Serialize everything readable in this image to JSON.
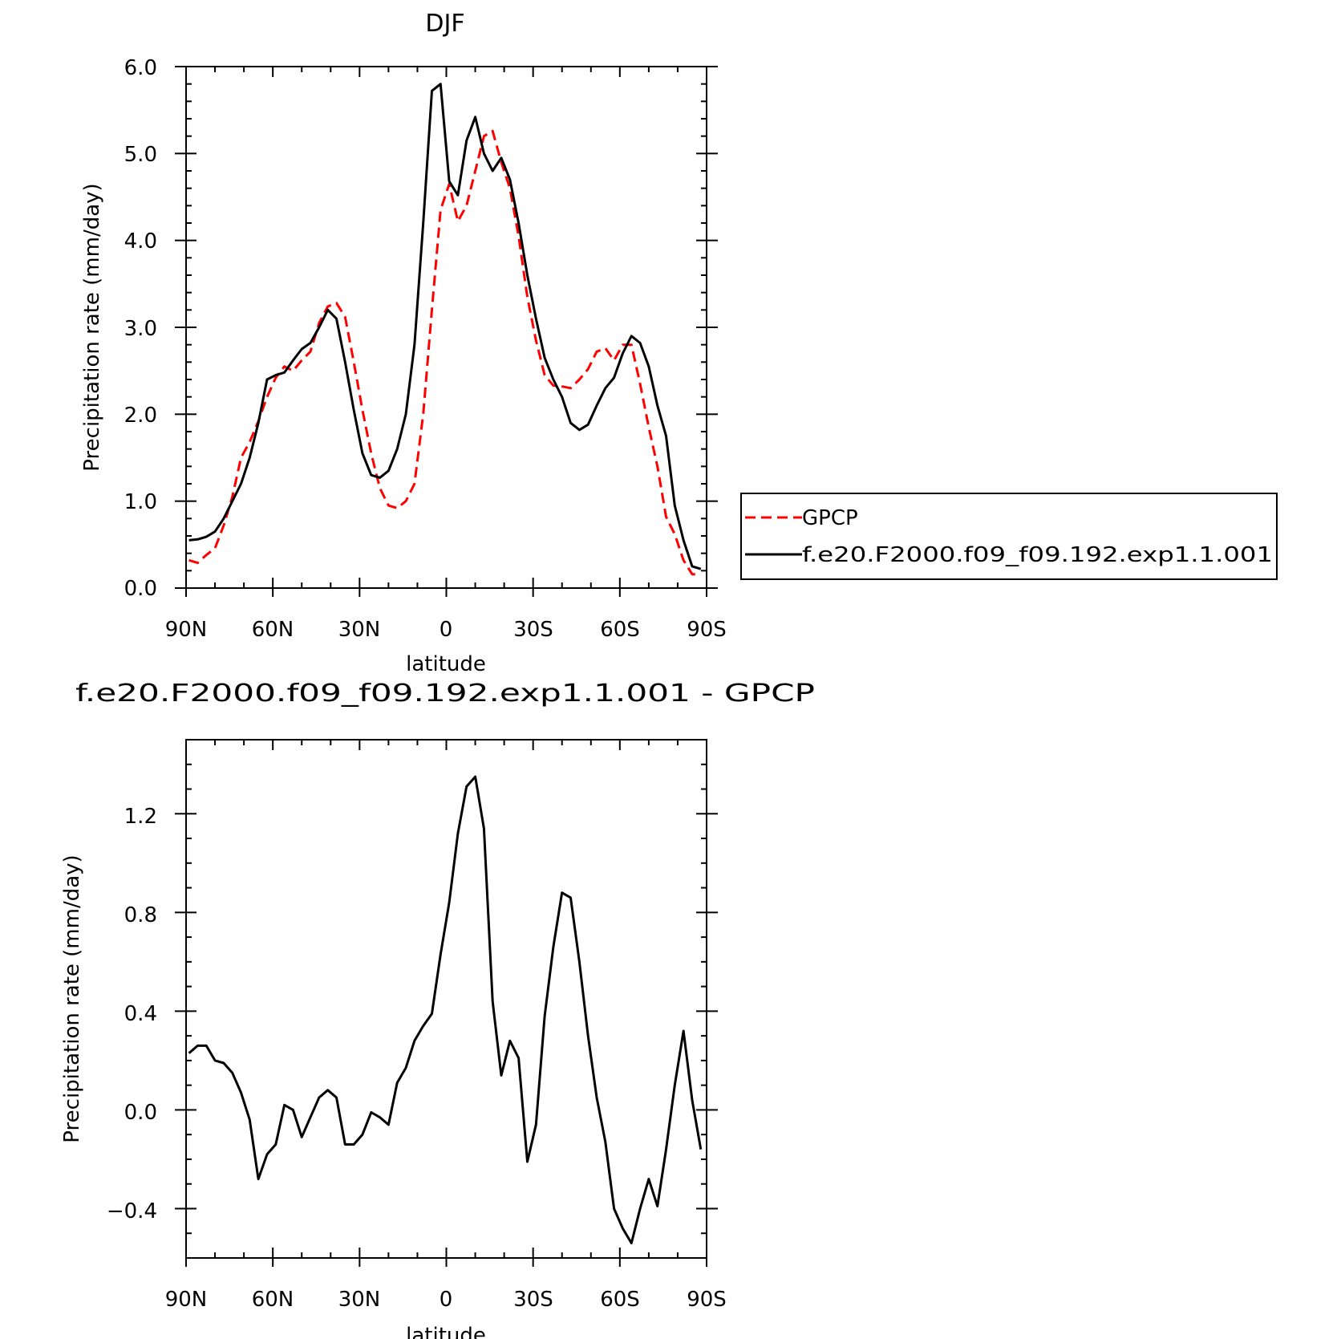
{
  "chart_data": [
    {
      "type": "line",
      "title": "DJF",
      "xlabel": "latitude",
      "ylabel": "Precipitation rate (mm/day)",
      "xlim": [
        90,
        -90
      ],
      "ylim": [
        0,
        6
      ],
      "x_ticks": [
        {
          "value": 90,
          "label": "90N"
        },
        {
          "value": 60,
          "label": "60N"
        },
        {
          "value": 30,
          "label": "30N"
        },
        {
          "value": 0,
          "label": "0"
        },
        {
          "value": -30,
          "label": "30S"
        },
        {
          "value": -60,
          "label": "60S"
        },
        {
          "value": -90,
          "label": "90S"
        }
      ],
      "y_ticks": [
        {
          "value": 0,
          "label": "0.0"
        },
        {
          "value": 1,
          "label": "1.0"
        },
        {
          "value": 2,
          "label": "2.0"
        },
        {
          "value": 3,
          "label": "3.0"
        },
        {
          "value": 4,
          "label": "4.0"
        },
        {
          "value": 5,
          "label": "5.0"
        },
        {
          "value": 6,
          "label": "6.0"
        }
      ],
      "grid": false,
      "legend_position": "right",
      "series": [
        {
          "name": "GPCP",
          "color": "#ff0000",
          "dash": true,
          "x": [
            89,
            86,
            83,
            80,
            77,
            74,
            71,
            68,
            65,
            62,
            59,
            56,
            53,
            50,
            47,
            44,
            41,
            38,
            35,
            32,
            29,
            26,
            23,
            20,
            17,
            14,
            11,
            8,
            5,
            2,
            -1,
            -4,
            -7,
            -10,
            -13,
            -16,
            -19,
            -22,
            -25,
            -28,
            -31,
            -34,
            -37,
            -40,
            -43,
            -46,
            -49,
            -52,
            -55,
            -58,
            -61,
            -64,
            -67,
            -70,
            -73,
            -76,
            -79,
            -82,
            -85,
            -88
          ],
          "y": [
            0.32,
            0.29,
            0.38,
            0.46,
            0.72,
            1.05,
            1.5,
            1.68,
            1.92,
            2.2,
            2.42,
            2.55,
            2.5,
            2.62,
            2.72,
            3.05,
            3.24,
            3.28,
            3.12,
            2.6,
            2.05,
            1.55,
            1.15,
            0.95,
            0.92,
            1.0,
            1.2,
            2.0,
            3.2,
            4.35,
            4.65,
            4.22,
            4.4,
            4.8,
            5.2,
            5.26,
            4.9,
            4.6,
            4.05,
            3.35,
            2.85,
            2.45,
            2.33,
            2.32,
            2.3,
            2.4,
            2.52,
            2.72,
            2.76,
            2.62,
            2.8,
            2.8,
            2.35,
            1.85,
            1.4,
            0.82,
            0.62,
            0.32,
            0.16,
            0.16
          ]
        },
        {
          "name": "f.e20.F2000.f09_f09.192.exp1.1.001",
          "color": "#000000",
          "dash": false,
          "x": [
            89,
            86,
            83,
            80,
            77,
            74,
            71,
            68,
            65,
            62,
            59,
            56,
            53,
            50,
            47,
            44,
            41,
            38,
            35,
            32,
            29,
            26,
            23,
            20,
            17,
            14,
            11,
            8,
            5,
            2,
            -1,
            -4,
            -7,
            -10,
            -13,
            -16,
            -19,
            -22,
            -25,
            -28,
            -31,
            -34,
            -37,
            -40,
            -43,
            -46,
            -49,
            -52,
            -55,
            -58,
            -61,
            -64,
            -67,
            -70,
            -73,
            -76,
            -79,
            -82,
            -85,
            -88
          ],
          "y": [
            0.55,
            0.56,
            0.59,
            0.65,
            0.8,
            1.0,
            1.2,
            1.5,
            1.9,
            2.4,
            2.45,
            2.48,
            2.62,
            2.75,
            2.82,
            3.0,
            3.2,
            3.1,
            2.6,
            2.05,
            1.55,
            1.3,
            1.27,
            1.35,
            1.6,
            2.0,
            2.8,
            4.2,
            5.72,
            5.8,
            4.68,
            4.52,
            5.15,
            5.42,
            5.0,
            4.8,
            4.95,
            4.7,
            4.2,
            3.6,
            3.1,
            2.65,
            2.4,
            2.2,
            1.9,
            1.82,
            1.88,
            2.1,
            2.3,
            2.42,
            2.7,
            2.9,
            2.82,
            2.55,
            2.1,
            1.75,
            0.95,
            0.55,
            0.25,
            0.22
          ]
        }
      ]
    },
    {
      "type": "line",
      "title": "f.e20.F2000.f09_f09.192.exp1.1.001 - GPCP",
      "xlabel": "latitude",
      "ylabel": "Precipitation rate (mm/day)",
      "xlim": [
        90,
        -90
      ],
      "ylim": [
        -0.6,
        1.5
      ],
      "x_ticks": [
        {
          "value": 90,
          "label": "90N"
        },
        {
          "value": 60,
          "label": "60N"
        },
        {
          "value": 30,
          "label": "30N"
        },
        {
          "value": 0,
          "label": "0"
        },
        {
          "value": -30,
          "label": "30S"
        },
        {
          "value": -60,
          "label": "60S"
        },
        {
          "value": -90,
          "label": "90S"
        }
      ],
      "y_ticks": [
        {
          "value": -0.4,
          "label": "−0.4"
        },
        {
          "value": 0.0,
          "label": "0.0"
        },
        {
          "value": 0.4,
          "label": "0.4"
        },
        {
          "value": 0.8,
          "label": "0.8"
        },
        {
          "value": 1.2,
          "label": "1.2"
        }
      ],
      "grid": false,
      "series": [
        {
          "color": "#000000",
          "dash": false,
          "x": [
            89,
            86,
            83,
            80,
            77,
            74,
            71,
            68,
            65,
            62,
            59,
            56,
            53,
            50,
            47,
            44,
            41,
            38,
            35,
            32,
            29,
            26,
            23,
            20,
            17,
            14,
            11,
            8,
            5,
            2,
            -1,
            -4,
            -7,
            -10,
            -13,
            -16,
            -19,
            -22,
            -25,
            -28,
            -31,
            -34,
            -37,
            -40,
            -43,
            -46,
            -49,
            -52,
            -55,
            -58,
            -61,
            -64,
            -67,
            -70,
            -73,
            -76,
            -79,
            -82,
            -85,
            -88
          ],
          "y": [
            0.23,
            0.26,
            0.26,
            0.2,
            0.19,
            0.15,
            0.07,
            -0.04,
            -0.28,
            -0.18,
            -0.14,
            0.02,
            0.0,
            -0.11,
            -0.03,
            0.05,
            0.08,
            0.05,
            -0.14,
            -0.14,
            -0.1,
            -0.01,
            -0.03,
            -0.06,
            0.11,
            0.17,
            0.28,
            0.34,
            0.39,
            0.63,
            0.84,
            1.12,
            1.31,
            1.35,
            1.14,
            0.44,
            0.14,
            0.28,
            0.21,
            -0.21,
            -0.06,
            0.38,
            0.66,
            0.88,
            0.86,
            0.6,
            0.3,
            0.05,
            -0.13,
            -0.4,
            -0.48,
            -0.54,
            -0.4,
            -0.28,
            -0.39,
            -0.16,
            0.1,
            0.32,
            0.04,
            -0.16
          ]
        }
      ]
    }
  ]
}
